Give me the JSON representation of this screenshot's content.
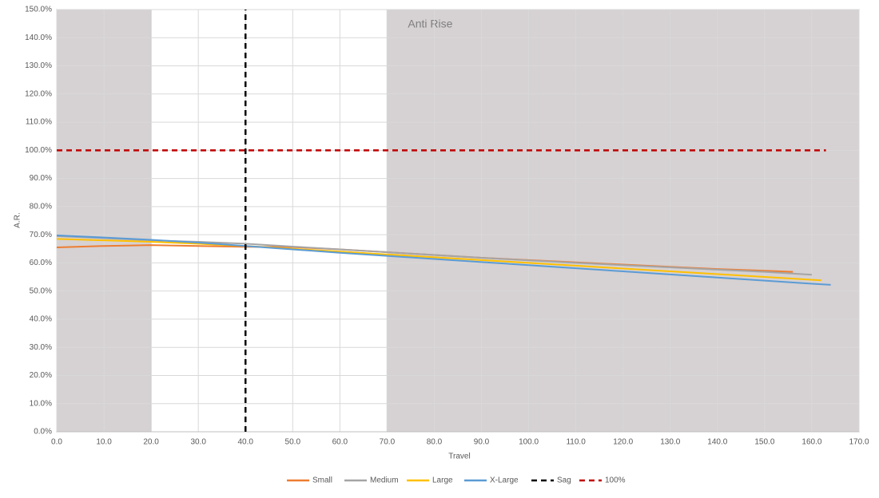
{
  "chart_data": {
    "type": "line",
    "x_label": "Travel",
    "y_label": "A.R.",
    "xlim": [
      0,
      170
    ],
    "ylim": [
      0,
      150
    ],
    "xticks": [
      {
        "value": 0,
        "label": "0.0"
      },
      {
        "value": 10,
        "label": "10.0"
      },
      {
        "value": 20,
        "label": "20.0"
      },
      {
        "value": 30,
        "label": "30.0"
      },
      {
        "value": 40,
        "label": "40.0"
      },
      {
        "value": 50,
        "label": "50.0"
      },
      {
        "value": 60,
        "label": "60.0"
      },
      {
        "value": 70,
        "label": "70.0"
      },
      {
        "value": 80,
        "label": "80.0"
      },
      {
        "value": 90,
        "label": "90.0"
      },
      {
        "value": 100,
        "label": "100.0"
      },
      {
        "value": 110,
        "label": "110.0"
      },
      {
        "value": 120,
        "label": "120.0"
      },
      {
        "value": 130,
        "label": "130.0"
      },
      {
        "value": 140,
        "label": "140.0"
      },
      {
        "value": 150,
        "label": "150.0"
      },
      {
        "value": 160,
        "label": "160.0"
      },
      {
        "value": 170,
        "label": "170.0"
      }
    ],
    "yticks": [
      {
        "value": 0,
        "label": "0.0%"
      },
      {
        "value": 10,
        "label": "10.0%"
      },
      {
        "value": 20,
        "label": "20.0%"
      },
      {
        "value": 30,
        "label": "30.0%"
      },
      {
        "value": 40,
        "label": "40.0%"
      },
      {
        "value": 50,
        "label": "50.0%"
      },
      {
        "value": 60,
        "label": "60.0%"
      },
      {
        "value": 70,
        "label": "70.0%"
      },
      {
        "value": 80,
        "label": "80.0%"
      },
      {
        "value": 90,
        "label": "90.0%"
      },
      {
        "value": 100,
        "label": "100.0%"
      },
      {
        "value": 110,
        "label": "110.0%"
      },
      {
        "value": 120,
        "label": "120.0%"
      },
      {
        "value": 130,
        "label": "130.0%"
      },
      {
        "value": 140,
        "label": "140.0%"
      },
      {
        "value": 150,
        "label": "150.0%"
      }
    ],
    "grid": true,
    "regions": [
      {
        "x": [
          0,
          20
        ],
        "color": "#d6d1d2"
      },
      {
        "x": [
          70,
          170
        ],
        "color": "#d6d1d2",
        "label": "Anti Rise"
      }
    ],
    "series": [
      {
        "name": "Small",
        "color": "#ed7d31",
        "x": [
          0,
          10,
          20,
          30,
          40,
          50,
          60,
          70,
          80,
          90,
          100,
          110,
          120,
          130,
          140,
          150,
          156
        ],
        "values": [
          65.5,
          66,
          66.3,
          66,
          65.7,
          65.6,
          64.8,
          63.8,
          62.8,
          61.8,
          61,
          60.2,
          59.4,
          58.6,
          57.8,
          57.2,
          56.8
        ]
      },
      {
        "name": "Medium",
        "color": "#a5a5a5",
        "x": [
          0,
          10,
          20,
          30,
          40,
          50,
          60,
          70,
          80,
          90,
          100,
          110,
          120,
          130,
          140,
          150,
          160
        ],
        "values": [
          69.5,
          68.8,
          68,
          67.5,
          66.8,
          65.8,
          64.8,
          63.8,
          62.8,
          61.8,
          60.9,
          60,
          59.2,
          58.4,
          57.6,
          56.8,
          55.8
        ]
      },
      {
        "name": "Large",
        "color": "#ffc000",
        "x": [
          0,
          10,
          20,
          30,
          40,
          50,
          60,
          70,
          80,
          90,
          100,
          110,
          120,
          130,
          140,
          150,
          162
        ],
        "values": [
          68.5,
          68,
          67.5,
          66.8,
          66,
          65,
          64,
          63,
          62,
          61,
          60,
          59,
          58,
          57,
          56,
          55,
          53.8
        ]
      },
      {
        "name": "X-Large",
        "color": "#5b9bd5",
        "x": [
          0,
          10,
          20,
          30,
          40,
          50,
          60,
          70,
          80,
          90,
          100,
          110,
          120,
          130,
          140,
          150,
          160,
          164
        ],
        "values": [
          69.8,
          69,
          68.2,
          67.2,
          66,
          64.8,
          63.6,
          62.5,
          61.4,
          60.3,
          59.2,
          58.1,
          57,
          55.9,
          54.8,
          53.7,
          52.6,
          52.2
        ]
      },
      {
        "name": "Sag",
        "color": "#000000",
        "dashed": true,
        "x": [
          40,
          40
        ],
        "values": [
          0,
          150
        ]
      },
      {
        "name": "100%",
        "color": "#c00000",
        "dashed": true,
        "x": [
          0,
          163
        ],
        "values": [
          100,
          100
        ]
      }
    ]
  }
}
